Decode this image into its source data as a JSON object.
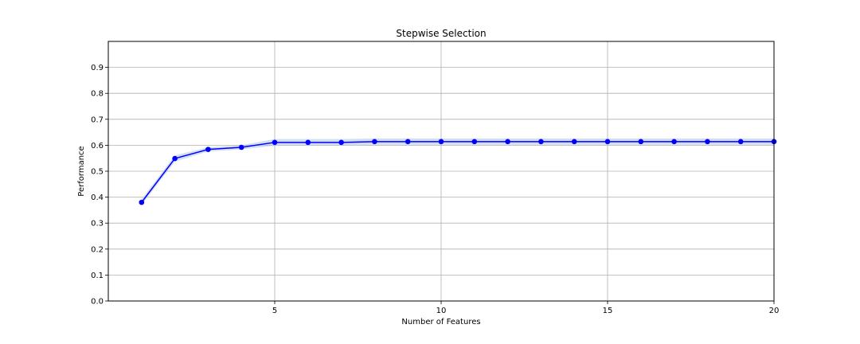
{
  "chart_data": {
    "type": "line",
    "title": "Stepwise Selection",
    "xlabel": "Number of Features",
    "ylabel": "Performance",
    "xlim": [
      0,
      20
    ],
    "ylim": [
      0.0,
      1.0
    ],
    "xticks": [
      5,
      10,
      15,
      20
    ],
    "yticks": [
      0.0,
      0.1,
      0.2,
      0.3,
      0.4,
      0.5,
      0.6,
      0.7,
      0.8,
      0.9
    ],
    "grid": true,
    "colors": {
      "line": "#0000ff",
      "band": "#aec2e8"
    },
    "series": [
      {
        "x": [
          1,
          2,
          3,
          4,
          5,
          6,
          7,
          8,
          9,
          10,
          11,
          12,
          13,
          14,
          15,
          16,
          17,
          18,
          19,
          20
        ],
        "values": [
          0.38,
          0.549,
          0.584,
          0.592,
          0.611,
          0.611,
          0.611,
          0.614,
          0.614,
          0.614,
          0.614,
          0.614,
          0.614,
          0.614,
          0.614,
          0.614,
          0.614,
          0.614,
          0.614,
          0.614
        ],
        "lower": [
          0.37,
          0.537,
          0.576,
          0.584,
          0.598,
          0.598,
          0.598,
          0.602,
          0.602,
          0.602,
          0.602,
          0.602,
          0.602,
          0.602,
          0.602,
          0.602,
          0.602,
          0.602,
          0.602,
          0.602
        ],
        "upper": [
          0.392,
          0.561,
          0.592,
          0.6,
          0.624,
          0.624,
          0.624,
          0.626,
          0.626,
          0.626,
          0.626,
          0.626,
          0.626,
          0.626,
          0.626,
          0.626,
          0.626,
          0.626,
          0.626,
          0.626
        ]
      }
    ]
  }
}
